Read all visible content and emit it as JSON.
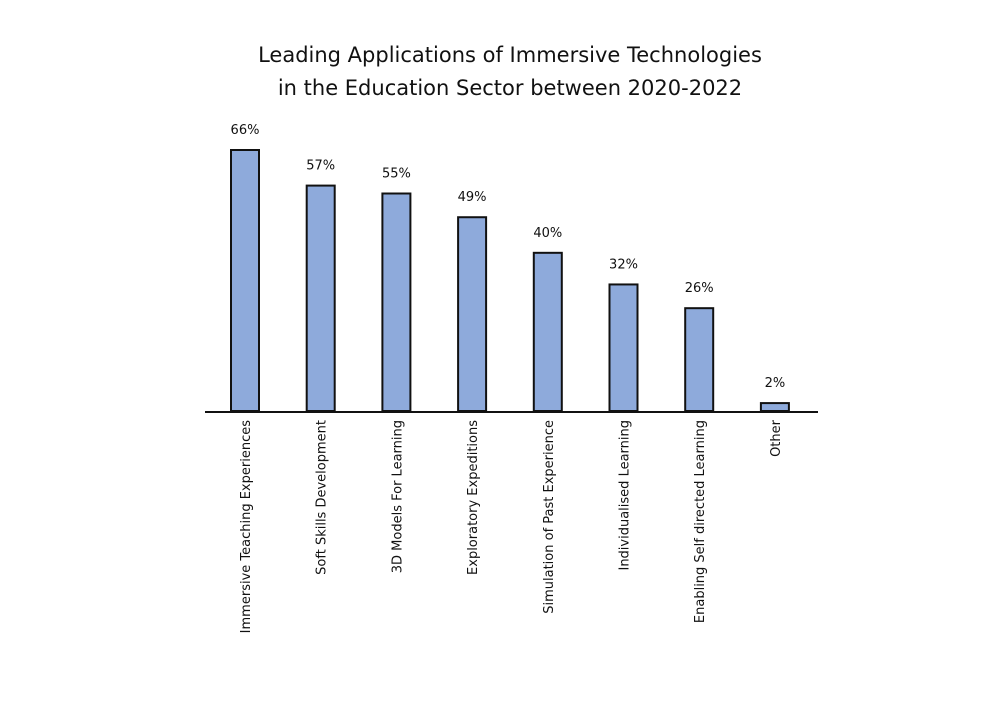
{
  "chart_data": {
    "type": "bar",
    "title": [
      "Leading Applications of Immersive Technologies",
      "in the Education Sector between 2020-2022"
    ],
    "categories": [
      "Immersive Teaching Experiences",
      "Soft Skills Development",
      "3D Models For Learning",
      "Exploratory Expeditions",
      "Simulation of Past Experience",
      "Individualised Learning",
      "Enabling Self directed Learning",
      "Other"
    ],
    "values": [
      66,
      57,
      55,
      49,
      40,
      32,
      26,
      2
    ],
    "data_labels": [
      "66%",
      "57%",
      "55%",
      "49%",
      "40%",
      "32%",
      "26%",
      "2%"
    ],
    "ylim": [
      0,
      66
    ],
    "grid": false,
    "legend": "none",
    "colors": {
      "bar": "#8eaadb",
      "outline": "#111111"
    }
  }
}
